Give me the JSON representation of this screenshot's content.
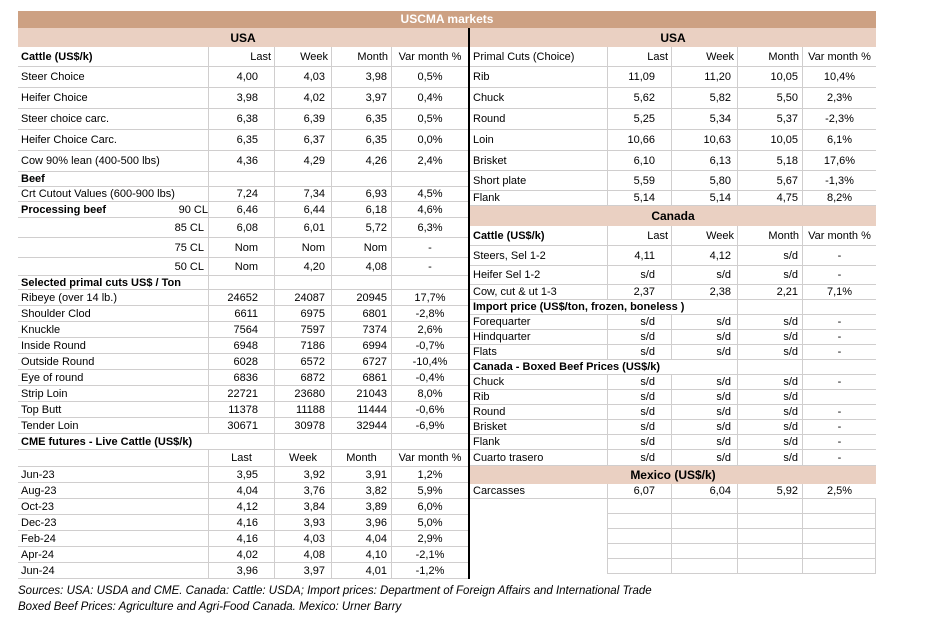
{
  "title": "USCMA markets",
  "columns": [
    "Last",
    "Week",
    "Month",
    "Var month %"
  ],
  "colors": {
    "title_bar": "#CDA183",
    "region_band": "#EAD0C2",
    "grid_line": "#D0CECE",
    "divider": "#000000",
    "title_text": "#FFFFFF"
  },
  "left_panel": {
    "rows": [
      {
        "t": "band",
        "label": "USA"
      },
      {
        "t": "hdr",
        "label": "Cattle (US$/k)",
        "bold": true
      },
      {
        "t": "row",
        "label": "Steer Choice",
        "v": [
          "4,00",
          "4,03",
          "3,98",
          "0,5%"
        ]
      },
      {
        "t": "row",
        "label": "Heifer Choice",
        "v": [
          "3,98",
          "4,02",
          "3,97",
          "0,4%"
        ]
      },
      {
        "t": "row",
        "label": "Steer choice carc.",
        "v": [
          "6,38",
          "6,39",
          "6,35",
          "0,5%"
        ]
      },
      {
        "t": "row",
        "label": "Heifer Choice Carc.",
        "v": [
          "6,35",
          "6,37",
          "6,35",
          "0,0%"
        ]
      },
      {
        "t": "row",
        "label": "Cow 90% lean (400-500 lbs)",
        "v": [
          "4,36",
          "4,29",
          "4,26",
          "2,4%"
        ]
      },
      {
        "t": "sec",
        "label": "Beef",
        "bold": true,
        "span": 1
      },
      {
        "t": "row",
        "label": "Crt Cutout Values (600-900 lbs)",
        "v": [
          "7,24",
          "7,34",
          "6,93",
          "4,5%"
        ]
      },
      {
        "t": "row",
        "label": "Processing beef",
        "label2": "90 CL",
        "lbold": true,
        "v": [
          "6,46",
          "6,44",
          "6,18",
          "4,6%"
        ]
      },
      {
        "t": "row",
        "label": "85 CL",
        "lalign": "right",
        "v": [
          "6,08",
          "6,01",
          "5,72",
          "6,3%"
        ]
      },
      {
        "t": "row",
        "label": "75 CL",
        "lalign": "right",
        "v": [
          "Nom",
          "Nom",
          "Nom",
          "-"
        ]
      },
      {
        "t": "row",
        "label": "50 CL",
        "lalign": "right",
        "v": [
          "Nom",
          "4,20",
          "4,08",
          "-"
        ]
      },
      {
        "t": "sec",
        "label": "Selected primal cuts US$ / Ton",
        "bold": true,
        "span": 1
      },
      {
        "t": "row",
        "label": "Ribeye (over 14 lb.)",
        "v": [
          "24652",
          "24087",
          "20945",
          "17,7%"
        ]
      },
      {
        "t": "row",
        "label": "Shoulder Clod",
        "v": [
          "6611",
          "6975",
          "6801",
          "-2,8%"
        ]
      },
      {
        "t": "row",
        "label": "Knuckle",
        "v": [
          "7564",
          "7597",
          "7374",
          "2,6%"
        ]
      },
      {
        "t": "row",
        "label": "Inside Round",
        "v": [
          "6948",
          "7186",
          "6994",
          "-0,7%"
        ]
      },
      {
        "t": "row",
        "label": "Outside Round",
        "v": [
          "6028",
          "6572",
          "6727",
          "-10,4%"
        ]
      },
      {
        "t": "row",
        "label": "Eye of round",
        "v": [
          "6836",
          "6872",
          "6861",
          "-0,4%"
        ]
      },
      {
        "t": "row",
        "label": "Strip Loin",
        "v": [
          "22721",
          "23680",
          "21043",
          "8,0%"
        ]
      },
      {
        "t": "row",
        "label": "Top Butt",
        "v": [
          "11378",
          "11188",
          "11444",
          "-0,6%"
        ]
      },
      {
        "t": "row",
        "label": "Tender Loin",
        "v": [
          "30671",
          "30978",
          "32944",
          "-6,9%"
        ]
      },
      {
        "t": "sec",
        "label": "CME futures - Live Cattle (US$/k)",
        "bold": true,
        "span": 2
      },
      {
        "t": "hdr",
        "label": "",
        "center": true
      },
      {
        "t": "row",
        "label": "Jun-23",
        "v": [
          "3,95",
          "3,92",
          "3,91",
          "1,2%"
        ]
      },
      {
        "t": "row",
        "label": "Aug-23",
        "v": [
          "4,04",
          "3,76",
          "3,82",
          "5,9%"
        ]
      },
      {
        "t": "row",
        "label": "Oct-23",
        "v": [
          "4,12",
          "3,84",
          "3,89",
          "6,0%"
        ]
      },
      {
        "t": "row",
        "label": "Dec-23",
        "v": [
          "4,16",
          "3,93",
          "3,96",
          "5,0%"
        ]
      },
      {
        "t": "row",
        "label": "Feb-24",
        "v": [
          "4,16",
          "4,03",
          "4,04",
          "2,9%"
        ]
      },
      {
        "t": "row",
        "label": "Apr-24",
        "v": [
          "4,02",
          "4,08",
          "4,10",
          "-2,1%"
        ]
      },
      {
        "t": "row",
        "label": "Jun-24",
        "v": [
          "3,96",
          "3,97",
          "4,01",
          "-1,2%"
        ]
      }
    ]
  },
  "right_panel": {
    "rows": [
      {
        "t": "band",
        "label": "USA"
      },
      {
        "t": "hdr",
        "label": "Primal Cuts (Choice)"
      },
      {
        "t": "row",
        "label": "Rib",
        "v": [
          "11,09",
          "11,20",
          "10,05",
          "10,4%"
        ]
      },
      {
        "t": "row",
        "label": "Chuck",
        "v": [
          "5,62",
          "5,82",
          "5,50",
          "2,3%"
        ]
      },
      {
        "t": "row",
        "label": "Round",
        "v": [
          "5,25",
          "5,34",
          "5,37",
          "-2,3%"
        ]
      },
      {
        "t": "row",
        "label": "Loin",
        "v": [
          "10,66",
          "10,63",
          "10,05",
          "6,1%"
        ]
      },
      {
        "t": "row",
        "label": "Brisket",
        "v": [
          "6,10",
          "6,13",
          "5,18",
          "17,6%"
        ]
      },
      {
        "t": "row",
        "label": "Short plate",
        "v": [
          "5,59",
          "5,80",
          "5,67",
          "-1,3%"
        ]
      },
      {
        "t": "row",
        "label": "Flank",
        "v": [
          "5,14",
          "5,14",
          "4,75",
          "8,2%"
        ]
      },
      {
        "t": "band",
        "label": "Canada"
      },
      {
        "t": "hdr",
        "label": "Cattle (US$/k)",
        "bold": true
      },
      {
        "t": "row",
        "label": "Steers, Sel 1-2",
        "v": [
          "4,11",
          "4,12",
          "s/d",
          "-"
        ]
      },
      {
        "t": "row",
        "label": "Heifer Sel 1-2",
        "v": [
          "s/d",
          "s/d",
          "s/d",
          "-"
        ]
      },
      {
        "t": "row",
        "label": "Cow, cut & ut 1-3",
        "v": [
          "2,37",
          "2,38",
          "2,21",
          "7,1%"
        ]
      },
      {
        "t": "sec",
        "label": "Import price (US$/ton, frozen, boneless )",
        "bold": true,
        "span": 3
      },
      {
        "t": "row",
        "label": "Forequarter",
        "v": [
          "s/d",
          "s/d",
          "s/d",
          "-"
        ]
      },
      {
        "t": "row",
        "label": "Hindquarter",
        "v": [
          "s/d",
          "s/d",
          "s/d",
          "-"
        ]
      },
      {
        "t": "row",
        "label": "Flats",
        "v": [
          "s/d",
          "s/d",
          "s/d",
          "-"
        ]
      },
      {
        "t": "sec",
        "label": "Canada - Boxed Beef Prices (US$/k)",
        "bold": true,
        "span": 3
      },
      {
        "t": "row",
        "label": "Chuck",
        "v": [
          "s/d",
          "s/d",
          "s/d",
          "-"
        ]
      },
      {
        "t": "row",
        "label": "Rib",
        "v": [
          "s/d",
          "s/d",
          "s/d",
          ""
        ]
      },
      {
        "t": "row",
        "label": "Round",
        "v": [
          "s/d",
          "s/d",
          "s/d",
          "-"
        ]
      },
      {
        "t": "row",
        "label": "Brisket",
        "v": [
          "s/d",
          "s/d",
          "s/d",
          "-"
        ]
      },
      {
        "t": "row",
        "label": "Flank",
        "v": [
          "s/d",
          "s/d",
          "s/d",
          "-"
        ]
      },
      {
        "t": "row",
        "label": "Cuarto trasero",
        "v": [
          "s/d",
          "s/d",
          "s/d",
          "-"
        ]
      },
      {
        "t": "band",
        "label": "Mexico (US$/k)"
      },
      {
        "t": "row",
        "label": "Carcasses",
        "v": [
          "6,07",
          "6,04",
          "5,92",
          "2,5%"
        ]
      },
      {
        "t": "empty"
      },
      {
        "t": "empty"
      },
      {
        "t": "empty"
      },
      {
        "t": "empty"
      },
      {
        "t": "empty"
      }
    ]
  },
  "footer": {
    "line1": "Sources: USA: USDA and CME. Canada: Cattle: USDA; Import prices: Department of Foreign Affairs and International Trade",
    "line2": "Boxed Beef Prices: Agriculture and Agri-Food Canada. Mexico: Urner Barry"
  }
}
